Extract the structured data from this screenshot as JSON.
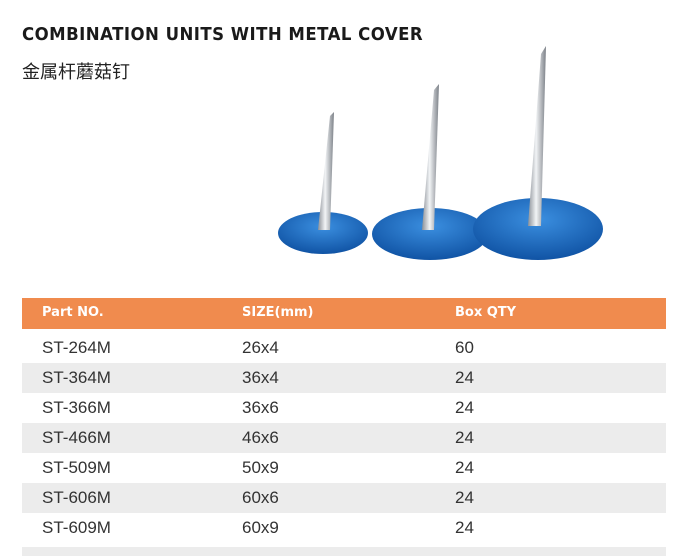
{
  "header": {
    "title": "COMBINATION UNITS WITH METAL COVER",
    "subtitle": "金属杆蘑菇钉"
  },
  "table": {
    "columns": [
      "Part  NO.",
      "SIZE(mm)",
      "Box QTY"
    ],
    "rows": [
      [
        "ST-264M",
        "26x4",
        "60"
      ],
      [
        "ST-364M",
        "36x4",
        "24"
      ],
      [
        "ST-366M",
        "36x6",
        "24"
      ],
      [
        "ST-466M",
        "46x6",
        "24"
      ],
      [
        "ST-509M",
        "50x9",
        "24"
      ],
      [
        "ST-606M",
        "60x6",
        "24"
      ],
      [
        "ST-609M",
        "60x9",
        "24"
      ]
    ]
  }
}
